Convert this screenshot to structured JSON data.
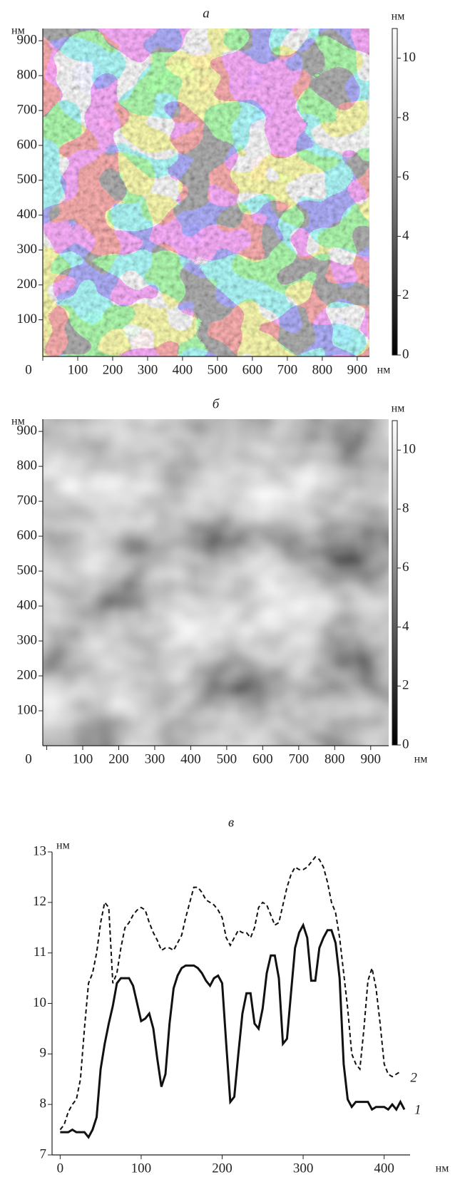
{
  "chart_data": [
    {
      "type": "heatmap",
      "title": "а",
      "xlabel": "нм",
      "ylabel": "нм",
      "xlim": [
        0,
        935
      ],
      "ylim": [
        -5,
        935
      ],
      "xticks": [
        0,
        100,
        200,
        300,
        400,
        500,
        600,
        700,
        800,
        900
      ],
      "yticks": [
        100,
        200,
        300,
        400,
        500,
        600,
        700,
        800,
        900
      ],
      "colorbar": {
        "label": "нм",
        "lim": [
          0,
          11
        ],
        "ticks": [
          0,
          2,
          4,
          6,
          8,
          10
        ]
      }
    },
    {
      "type": "heatmap",
      "title": "б",
      "xlabel": "нм",
      "ylabel": "нм",
      "xlim": [
        -11,
        950
      ],
      "ylim": [
        0,
        935
      ],
      "xticks": [
        0,
        100,
        200,
        300,
        400,
        500,
        600,
        700,
        800,
        900
      ],
      "yticks": [
        100,
        200,
        300,
        400,
        500,
        600,
        700,
        800,
        900
      ],
      "colorbar": {
        "label": "нм",
        "lim": [
          0,
          11
        ],
        "ticks": [
          0,
          2,
          4,
          6,
          8,
          10
        ]
      }
    },
    {
      "type": "line",
      "title": "в",
      "xlabel": "нм",
      "ylabel": "нм",
      "xlim": [
        -10,
        432
      ],
      "ylim": [
        7,
        13
      ],
      "xticks": [
        0,
        100,
        200,
        300,
        400
      ],
      "yticks": [
        7,
        8,
        9,
        10,
        11,
        12,
        13
      ],
      "x": [
        0,
        5,
        10,
        15,
        20,
        25,
        30,
        35,
        40,
        45,
        50,
        55,
        60,
        65,
        70,
        75,
        80,
        85,
        90,
        95,
        100,
        105,
        110,
        115,
        120,
        125,
        130,
        135,
        140,
        145,
        150,
        155,
        160,
        165,
        170,
        175,
        180,
        185,
        190,
        195,
        200,
        205,
        210,
        215,
        220,
        225,
        230,
        235,
        240,
        245,
        250,
        255,
        260,
        265,
        270,
        275,
        280,
        285,
        290,
        295,
        300,
        305,
        310,
        315,
        320,
        325,
        330,
        335,
        340,
        345,
        350,
        355,
        360,
        365,
        370,
        375,
        380,
        385,
        390,
        395,
        400,
        405,
        410,
        415,
        420,
        425
      ],
      "series": [
        {
          "name": "1",
          "color": "#111111",
          "dash": false,
          "values": [
            7.45,
            7.45,
            7.45,
            7.5,
            7.45,
            7.45,
            7.45,
            7.35,
            7.5,
            7.75,
            8.7,
            9.2,
            9.6,
            9.95,
            10.4,
            10.5,
            10.5,
            10.5,
            10.35,
            10.0,
            9.65,
            9.7,
            9.8,
            9.5,
            8.9,
            8.35,
            8.6,
            9.6,
            10.3,
            10.55,
            10.7,
            10.75,
            10.75,
            10.75,
            10.7,
            10.6,
            10.45,
            10.35,
            10.5,
            10.55,
            10.4,
            9.2,
            8.05,
            8.15,
            9.0,
            9.8,
            10.2,
            10.2,
            9.6,
            9.5,
            9.9,
            10.6,
            10.95,
            10.95,
            10.5,
            9.2,
            9.3,
            10.2,
            11.1,
            11.4,
            11.55,
            11.3,
            10.45,
            10.45,
            11.1,
            11.3,
            11.45,
            11.45,
            11.2,
            10.5,
            8.8,
            8.1,
            7.95,
            8.05,
            8.05,
            8.05,
            8.05,
            7.9,
            7.95,
            7.95,
            7.95,
            7.9,
            8.0,
            7.9,
            8.05,
            7.9
          ]
        },
        {
          "name": "2",
          "color": "#111111",
          "dash": true,
          "values": [
            7.5,
            7.6,
            7.85,
            8.0,
            8.1,
            8.5,
            9.5,
            10.4,
            10.6,
            11.0,
            11.6,
            12.0,
            11.9,
            10.4,
            10.6,
            11.1,
            11.5,
            11.6,
            11.75,
            11.85,
            11.9,
            11.85,
            11.6,
            11.4,
            11.25,
            11.05,
            11.1,
            11.1,
            11.05,
            11.2,
            11.35,
            11.7,
            12.0,
            12.3,
            12.3,
            12.2,
            12.05,
            12.0,
            11.95,
            11.85,
            11.7,
            11.3,
            11.15,
            11.3,
            11.45,
            11.4,
            11.4,
            11.3,
            11.5,
            11.9,
            12.0,
            11.95,
            11.75,
            11.55,
            11.6,
            11.95,
            12.3,
            12.55,
            12.7,
            12.65,
            12.65,
            12.7,
            12.8,
            12.9,
            12.85,
            12.7,
            12.4,
            12.0,
            11.8,
            11.3,
            10.6,
            9.9,
            9.0,
            8.8,
            8.7,
            9.5,
            10.45,
            10.7,
            10.3,
            9.6,
            8.8,
            8.6,
            8.55,
            8.6,
            8.65,
            null
          ]
        }
      ]
    }
  ]
}
